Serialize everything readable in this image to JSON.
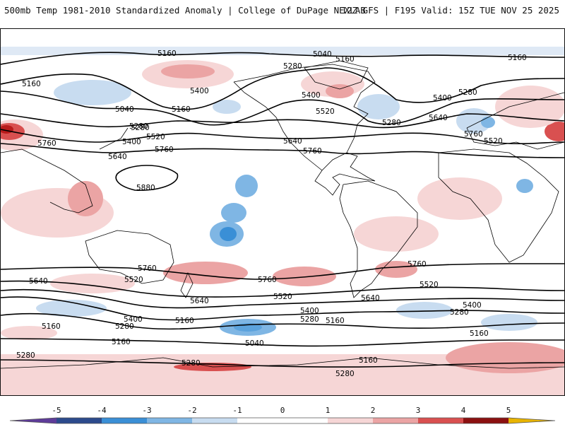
{
  "header": {
    "left_title": "500mb Temp 1981-2010 Standardized Anomaly | College of DuPage NEXLAB",
    "right_title": "12Z GFS | F195 Valid: 15Z TUE NOV 25 2025"
  },
  "colors": {
    "neg5": "#5e3c99",
    "neg4": "#2c4a8c",
    "neg3": "#3a8fd6",
    "neg2": "#7fb6e4",
    "neg1": "#c8dcf0",
    "zero": "#ffffff",
    "pos1": "#f6d6d6",
    "pos2": "#eba4a4",
    "pos3": "#d95050",
    "pos4": "#b81b1b",
    "pos5": "#e8b400",
    "contour": "#000000",
    "coast": "#000000"
  },
  "colorbar": {
    "ticks": [
      "-5",
      "-4",
      "-3",
      "-2",
      "-1",
      "0",
      "1",
      "2",
      "3",
      "4",
      "5"
    ]
  },
  "contour_labels": [
    {
      "id": "lbl-5160-a",
      "text": "5160"
    },
    {
      "id": "lbl-5040-a",
      "text": "5040"
    },
    {
      "id": "lbl-5160-b",
      "text": "5160"
    },
    {
      "id": "lbl-5160-c",
      "text": "5160"
    },
    {
      "id": "lbl-5280-a",
      "text": "5280"
    },
    {
      "id": "lbl-5160-d",
      "text": "5160"
    },
    {
      "id": "lbl-5400-a",
      "text": "5400"
    },
    {
      "id": "lbl-5040-b",
      "text": "5040"
    },
    {
      "id": "lbl-5160-e",
      "text": "5160"
    },
    {
      "id": "lbl-5280-b",
      "text": "5280"
    },
    {
      "id": "lbl-5400-b",
      "text": "5400"
    },
    {
      "id": "lbl-5520-a",
      "text": "5520"
    },
    {
      "id": "lbl-5520-b",
      "text": "5520"
    },
    {
      "id": "lbl-5280-c",
      "text": "5280"
    },
    {
      "id": "lbl-5400-c",
      "text": "5400"
    },
    {
      "id": "lbl-5280-d",
      "text": "5280"
    },
    {
      "id": "lbl-5640-a",
      "text": "5640"
    },
    {
      "id": "lbl-5760-a",
      "text": "5760"
    },
    {
      "id": "lbl-5640-b",
      "text": "5640"
    },
    {
      "id": "lbl-5760-b",
      "text": "5760"
    },
    {
      "id": "lbl-5640-c",
      "text": "5640"
    },
    {
      "id": "lbl-5760-c",
      "text": "5760"
    },
    {
      "id": "lbl-5760-d",
      "text": "5760"
    },
    {
      "id": "lbl-5520-c",
      "text": "5520"
    },
    {
      "id": "lbl-5880",
      "text": "5880"
    },
    {
      "id": "lbl-5400-d",
      "text": "5400"
    },
    {
      "id": "lbl-5280-e",
      "text": "5280"
    },
    {
      "id": "lbl-5640-d",
      "text": "5640"
    },
    {
      "id": "lbl-5760-e",
      "text": "5760"
    },
    {
      "id": "lbl-5520-d",
      "text": "5520"
    },
    {
      "id": "lbl-5640-e",
      "text": "5640"
    },
    {
      "id": "lbl-5760-f",
      "text": "5760"
    },
    {
      "id": "lbl-5520-e",
      "text": "5520"
    },
    {
      "id": "lbl-5400-e",
      "text": "5400"
    },
    {
      "id": "lbl-5280-f",
      "text": "5280"
    },
    {
      "id": "lbl-5160-f",
      "text": "5160"
    },
    {
      "id": "lbl-5640-f",
      "text": "5640"
    },
    {
      "id": "lbl-5760-g",
      "text": "5760"
    },
    {
      "id": "lbl-5520-f",
      "text": "5520"
    },
    {
      "id": "lbl-5400-f",
      "text": "5400"
    },
    {
      "id": "lbl-5280-g",
      "text": "5280"
    },
    {
      "id": "lbl-5400-g",
      "text": "5400"
    },
    {
      "id": "lbl-5280-h",
      "text": "5280"
    },
    {
      "id": "lbl-5160-g",
      "text": "5160"
    },
    {
      "id": "lbl-5160-h",
      "text": "5160"
    },
    {
      "id": "lbl-5160-i",
      "text": "5160"
    },
    {
      "id": "lbl-5040-c",
      "text": "5040"
    },
    {
      "id": "lbl-5160-j",
      "text": "5160"
    },
    {
      "id": "lbl-5280-i",
      "text": "5280"
    },
    {
      "id": "lbl-5280-j",
      "text": "5280"
    },
    {
      "id": "lbl-5160-k",
      "text": "5160"
    },
    {
      "id": "lbl-5280-k",
      "text": "5280"
    }
  ]
}
